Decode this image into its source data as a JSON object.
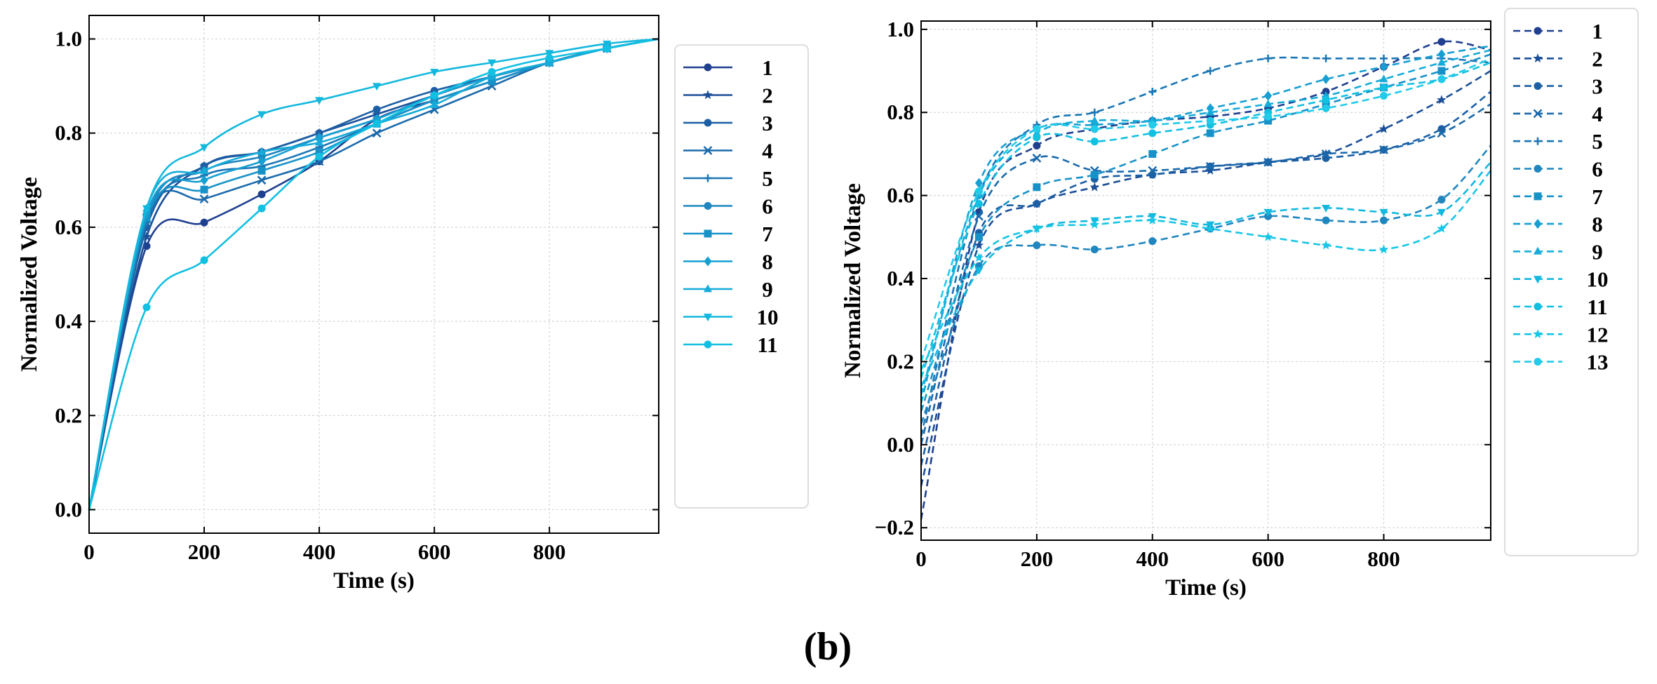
{
  "caption": "(b)",
  "colors": [
    "#1f3f8f",
    "#1b4f98",
    "#1d5fa4",
    "#1a6aac",
    "#1a76b4",
    "#1f86bf",
    "#1792c8",
    "#179fd2",
    "#15acd9",
    "#13b8de",
    "#12c0e2",
    "#17c6e6",
    "#22cbea"
  ],
  "chart_data": [
    {
      "type": "line",
      "title": "",
      "xlabel": "Time (s)",
      "ylabel": "Normalized Voltage",
      "xlim": [
        0,
        990
      ],
      "ylim": [
        -0.05,
        1.05
      ],
      "xticks": [
        0,
        200,
        400,
        600,
        800
      ],
      "xtick_labels": [
        "0",
        "200",
        "400",
        "600",
        "800"
      ],
      "yticks": [
        0.0,
        0.2,
        0.4,
        0.6,
        0.8,
        1.0
      ],
      "ytick_labels": [
        "0.0",
        "0.2",
        "0.4",
        "0.6",
        "0.8",
        "1.0"
      ],
      "grid": true,
      "line_style": "solid",
      "legend": "outside-right",
      "x": [
        0,
        100,
        200,
        300,
        400,
        500,
        600,
        700,
        800,
        900,
        990
      ],
      "series": [
        {
          "name": "1",
          "marker": "circle",
          "values": [
            0,
            0.56,
            0.61,
            0.67,
            0.74,
            0.83,
            0.87,
            0.91,
            0.95,
            0.98,
            1.0
          ]
        },
        {
          "name": "2",
          "marker": "star",
          "values": [
            0,
            0.58,
            0.73,
            0.76,
            0.8,
            0.84,
            0.88,
            0.92,
            0.95,
            0.98,
            1.0
          ]
        },
        {
          "name": "3",
          "marker": "circle",
          "values": [
            0,
            0.6,
            0.73,
            0.76,
            0.8,
            0.85,
            0.89,
            0.92,
            0.95,
            0.98,
            1.0
          ]
        },
        {
          "name": "4",
          "marker": "x",
          "values": [
            0,
            0.62,
            0.66,
            0.7,
            0.74,
            0.8,
            0.85,
            0.9,
            0.95,
            0.98,
            1.0
          ]
        },
        {
          "name": "5",
          "marker": "plus",
          "values": [
            0,
            0.61,
            0.71,
            0.73,
            0.77,
            0.82,
            0.87,
            0.91,
            0.95,
            0.98,
            1.0
          ]
        },
        {
          "name": "6",
          "marker": "circle",
          "values": [
            0,
            0.62,
            0.72,
            0.75,
            0.79,
            0.83,
            0.88,
            0.92,
            0.95,
            0.98,
            1.0
          ]
        },
        {
          "name": "7",
          "marker": "square",
          "values": [
            0,
            0.62,
            0.68,
            0.72,
            0.76,
            0.82,
            0.87,
            0.91,
            0.95,
            0.98,
            1.0
          ]
        },
        {
          "name": "8",
          "marker": "diamond",
          "values": [
            0,
            0.63,
            0.7,
            0.74,
            0.79,
            0.83,
            0.88,
            0.92,
            0.95,
            0.98,
            1.0
          ]
        },
        {
          "name": "9",
          "marker": "triangle",
          "values": [
            0,
            0.64,
            0.72,
            0.76,
            0.78,
            0.82,
            0.86,
            0.92,
            0.95,
            0.98,
            1.0
          ]
        },
        {
          "name": "10",
          "marker": "tri_down",
          "values": [
            0,
            0.64,
            0.77,
            0.84,
            0.87,
            0.9,
            0.93,
            0.95,
            0.97,
            0.99,
            1.0
          ]
        },
        {
          "name": "11",
          "marker": "circle",
          "values": [
            0,
            0.43,
            0.53,
            0.64,
            0.75,
            0.82,
            0.88,
            0.93,
            0.96,
            0.98,
            1.0
          ]
        }
      ]
    },
    {
      "type": "line",
      "title": "",
      "xlabel": "Time (s)",
      "ylabel": "Normalized Voltage",
      "xlim": [
        0,
        985
      ],
      "ylim": [
        -0.23,
        1.02
      ],
      "xticks": [
        0,
        200,
        400,
        600,
        800
      ],
      "xtick_labels": [
        "0",
        "200",
        "400",
        "600",
        "800"
      ],
      "yticks": [
        -0.2,
        0.0,
        0.2,
        0.4,
        0.6,
        0.8,
        1.0
      ],
      "ytick_labels": [
        "−0.2",
        "0.0",
        "0.2",
        "0.4",
        "0.6",
        "0.8",
        "1.0"
      ],
      "grid": true,
      "line_style": "dashed",
      "legend": "outside-right",
      "x": [
        0,
        100,
        200,
        300,
        400,
        500,
        600,
        700,
        800,
        900,
        985
      ],
      "series": [
        {
          "name": "1",
          "marker": "circle",
          "values": [
            -0.18,
            0.56,
            0.72,
            0.76,
            0.78,
            0.79,
            0.81,
            0.85,
            0.91,
            0.97,
            0.95
          ]
        },
        {
          "name": "2",
          "marker": "star",
          "values": [
            -0.1,
            0.48,
            0.58,
            0.62,
            0.65,
            0.66,
            0.68,
            0.7,
            0.76,
            0.83,
            0.9
          ]
        },
        {
          "name": "3",
          "marker": "circle",
          "values": [
            -0.05,
            0.51,
            0.58,
            0.64,
            0.65,
            0.67,
            0.68,
            0.69,
            0.71,
            0.76,
            0.85
          ]
        },
        {
          "name": "4",
          "marker": "x",
          "values": [
            0.0,
            0.55,
            0.69,
            0.66,
            0.66,
            0.67,
            0.68,
            0.7,
            0.71,
            0.75,
            0.82
          ]
        },
        {
          "name": "5",
          "marker": "plus",
          "values": [
            0.02,
            0.6,
            0.77,
            0.8,
            0.85,
            0.9,
            0.93,
            0.93,
            0.93,
            0.93,
            0.92
          ]
        },
        {
          "name": "6",
          "marker": "circle",
          "values": [
            0.05,
            0.43,
            0.48,
            0.47,
            0.49,
            0.52,
            0.55,
            0.54,
            0.54,
            0.59,
            0.72
          ]
        },
        {
          "name": "7",
          "marker": "square",
          "values": [
            0.08,
            0.5,
            0.62,
            0.65,
            0.7,
            0.75,
            0.78,
            0.82,
            0.86,
            0.9,
            0.94
          ]
        },
        {
          "name": "8",
          "marker": "diamond",
          "values": [
            0.1,
            0.63,
            0.76,
            0.77,
            0.78,
            0.81,
            0.84,
            0.88,
            0.91,
            0.94,
            0.96
          ]
        },
        {
          "name": "9",
          "marker": "triangle",
          "values": [
            0.12,
            0.6,
            0.75,
            0.78,
            0.78,
            0.8,
            0.82,
            0.84,
            0.88,
            0.92,
            0.95
          ]
        },
        {
          "name": "10",
          "marker": "tri_down",
          "values": [
            0.14,
            0.42,
            0.52,
            0.54,
            0.55,
            0.53,
            0.56,
            0.57,
            0.56,
            0.56,
            0.68
          ]
        },
        {
          "name": "11",
          "marker": "circle",
          "values": [
            0.16,
            0.58,
            0.74,
            0.73,
            0.75,
            0.77,
            0.8,
            0.83,
            0.86,
            0.88,
            0.92
          ]
        },
        {
          "name": "12",
          "marker": "star",
          "values": [
            0.18,
            0.45,
            0.52,
            0.53,
            0.54,
            0.52,
            0.5,
            0.48,
            0.47,
            0.52,
            0.66
          ]
        },
        {
          "name": "13",
          "marker": "circle",
          "values": [
            0.2,
            0.61,
            0.76,
            0.76,
            0.77,
            0.78,
            0.79,
            0.81,
            0.84,
            0.88,
            0.93
          ]
        }
      ]
    }
  ]
}
